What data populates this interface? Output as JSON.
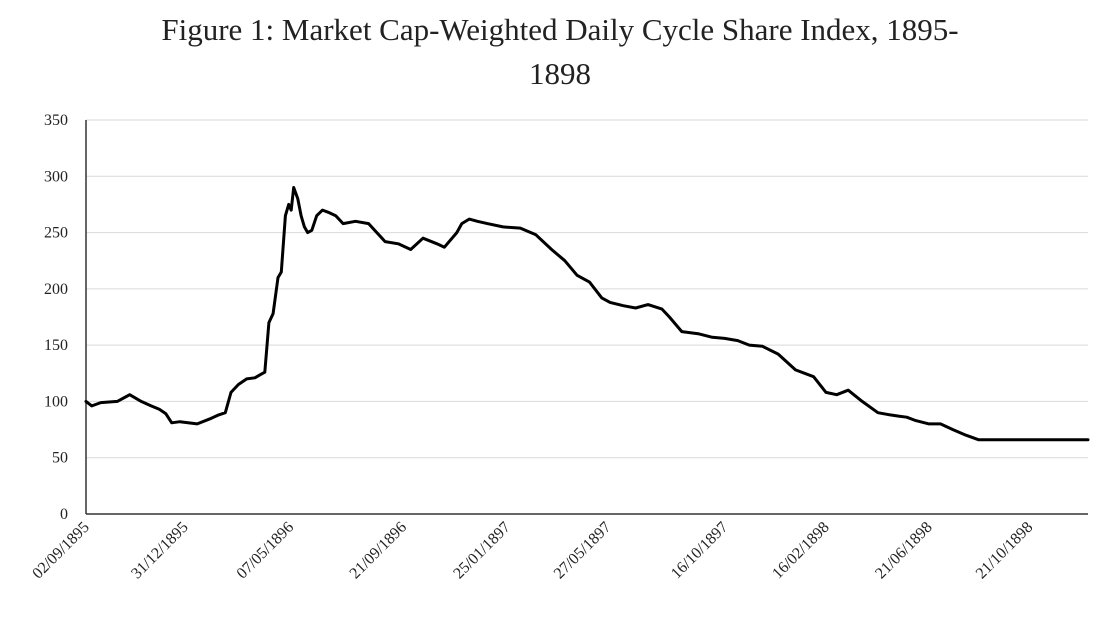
{
  "chart_data": {
    "type": "line",
    "title_line1": "Figure 1: Market Cap-Weighted Daily Cycle Share Index, 1895-",
    "title_line2": "1898",
    "xlabel": "",
    "ylabel": "",
    "ylim": [
      0,
      350
    ],
    "yticks": [
      0,
      50,
      100,
      150,
      200,
      250,
      300,
      350
    ],
    "x_start": "02/09/1895",
    "x_end": "31/12/1898",
    "xtick_labels": [
      "02/09/1895",
      "31/12/1895",
      "07/05/1896",
      "21/09/1896",
      "25/01/1897",
      "27/05/1897",
      "16/10/1897",
      "16/02/1898",
      "21/06/1898",
      "21/10/1898"
    ],
    "grid": true,
    "legend": "none",
    "line_color": "#000000",
    "series": [
      {
        "x": [
          "02/09/1895",
          "09/09/1895",
          "20/09/1895",
          "10/10/1895",
          "25/10/1895",
          "08/11/1895",
          "20/11/1895",
          "30/11/1895",
          "08/12/1895",
          "15/12/1895",
          "25/12/1895",
          "15/01/1896",
          "01/02/1896",
          "10/02/1896",
          "18/02/1896",
          "25/02/1896",
          "05/03/1896",
          "15/03/1896",
          "25/03/1896",
          "01/04/1896",
          "06/04/1896",
          "11/04/1896",
          "16/04/1896",
          "22/04/1896",
          "26/04/1896",
          "01/05/1896",
          "05/05/1896",
          "08/05/1896",
          "11/05/1896",
          "16/05/1896",
          "20/05/1896",
          "24/05/1896",
          "28/05/1896",
          "02/06/1896",
          "08/06/1896",
          "15/06/1896",
          "22/06/1896",
          "01/07/1896",
          "10/07/1896",
          "25/07/1896",
          "10/08/1896",
          "30/08/1896",
          "15/09/1896",
          "30/09/1896",
          "15/10/1896",
          "01/11/1896",
          "10/11/1896",
          "25/11/1896",
          "01/12/1896",
          "10/12/1896",
          "20/12/1896",
          "01/01/1897",
          "20/01/1897",
          "10/02/1897",
          "01/03/1897",
          "20/03/1897",
          "05/04/1897",
          "20/04/1897",
          "05/05/1897",
          "20/05/1897",
          "30/05/1897",
          "15/06/1897",
          "30/06/1897",
          "15/07/1897",
          "01/08/1897",
          "10/08/1897",
          "25/08/1897",
          "15/09/1897",
          "01/10/1897",
          "16/10/1897",
          "01/11/1897",
          "15/11/1897",
          "01/12/1897",
          "20/12/1897",
          "10/01/1898",
          "01/02/1898",
          "16/02/1898",
          "01/03/1898",
          "15/03/1898",
          "01/04/1898",
          "20/04/1898",
          "05/05/1898",
          "15/05/1898",
          "25/05/1898",
          "05/06/1898",
          "21/06/1898",
          "05/07/1898",
          "20/07/1898",
          "05/08/1898",
          "20/08/1898",
          "10/09/1898",
          "01/10/1898",
          "21/10/1898",
          "10/11/1898",
          "01/12/1898",
          "15/12/1898",
          "31/12/1898"
        ],
        "y": [
          100,
          96,
          99,
          100,
          106,
          100,
          96,
          93,
          89,
          81,
          82,
          80,
          85,
          88,
          90,
          108,
          115,
          120,
          121,
          124,
          126,
          170,
          178,
          210,
          215,
          265,
          275,
          270,
          290,
          280,
          265,
          255,
          250,
          252,
          265,
          270,
          268,
          265,
          258,
          260,
          258,
          242,
          240,
          235,
          245,
          240,
          237,
          250,
          258,
          262,
          260,
          258,
          255,
          254,
          248,
          235,
          225,
          212,
          206,
          192,
          188,
          185,
          183,
          186,
          182,
          175,
          162,
          160,
          157,
          156,
          154,
          150,
          149,
          142,
          128,
          122,
          108,
          106,
          110,
          100,
          90,
          88,
          87,
          86,
          83,
          80,
          80,
          75,
          70,
          66,
          66,
          66,
          66,
          66,
          66,
          66,
          66
        ]
      }
    ]
  }
}
